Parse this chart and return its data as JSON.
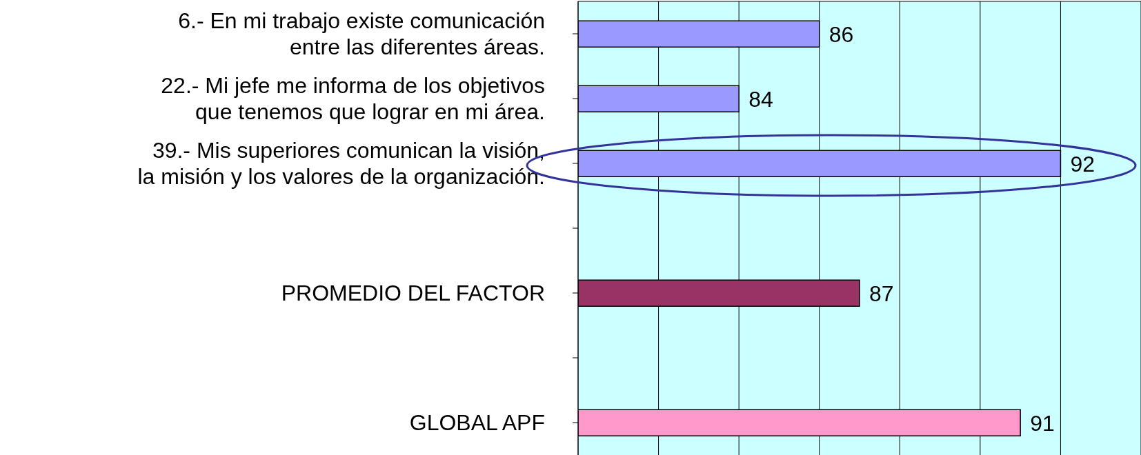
{
  "chart_data": {
    "type": "bar",
    "orientation": "horizontal",
    "categories": [
      "6.- En mi trabajo existe comunicación\nentre las diferentes áreas.",
      "22.- Mi jefe me informa de los objetivos\nque tenemos que lograr en mi área.",
      "39.- Mis superiores comunican la visión,\nla misión y los valores de la organización.",
      null,
      "PROMEDIO DEL FACTOR",
      null,
      "GLOBAL APF"
    ],
    "values": [
      86,
      84,
      92,
      null,
      87,
      null,
      91
    ],
    "colors": [
      "#9999ff",
      "#9999ff",
      "#9999ff",
      "#9999ff",
      "#993366",
      "#ff99cc",
      "#ff99cc"
    ],
    "xlim": [
      80,
      94
    ],
    "grid": "x",
    "tick_labels": "y",
    "data_labels": true
  }
}
